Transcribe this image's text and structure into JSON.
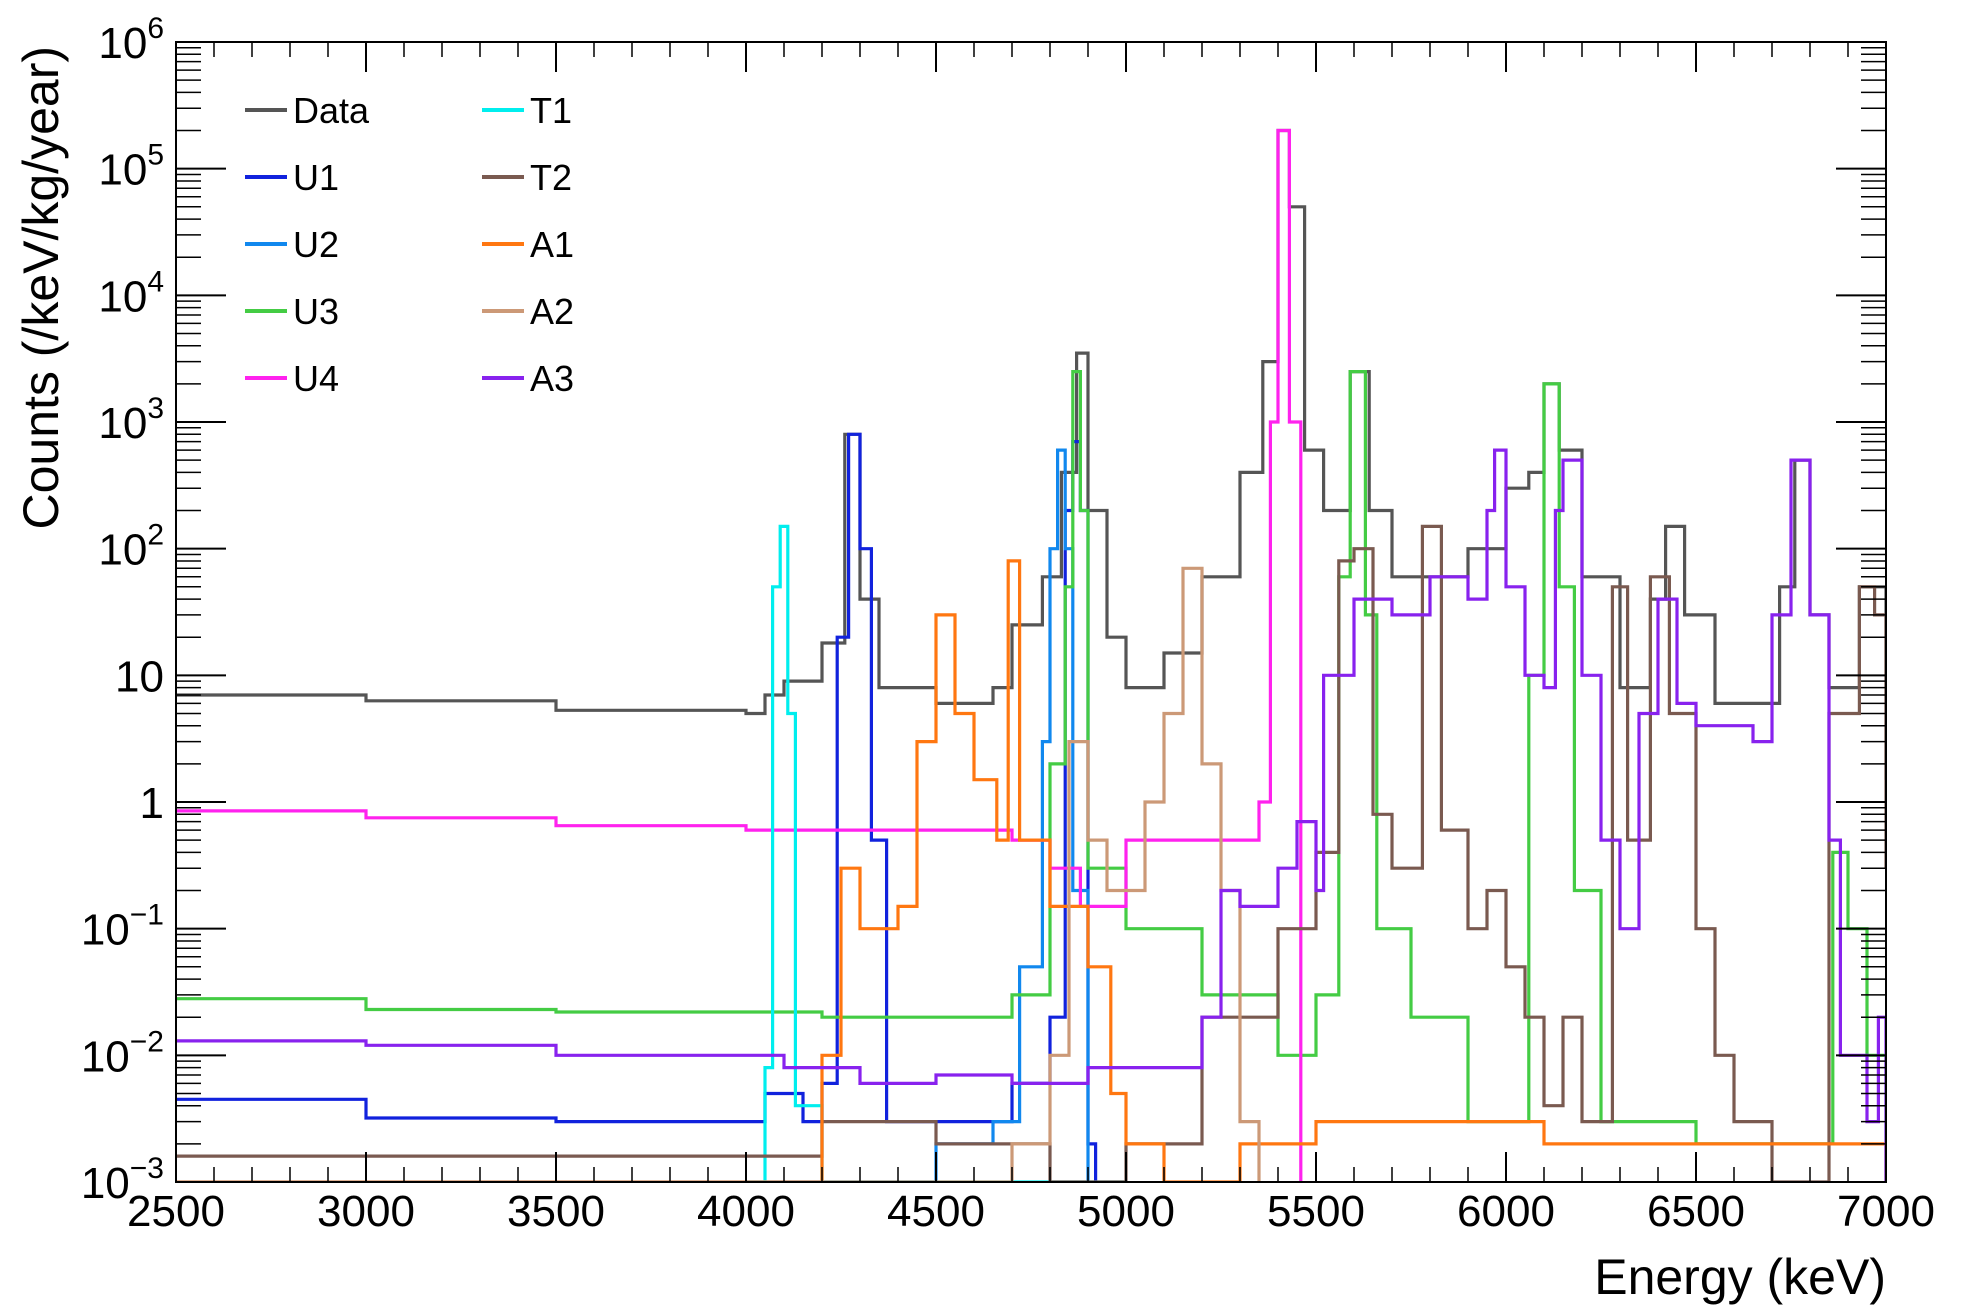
{
  "chart_data": {
    "type": "line",
    "xlabel": "Energy (keV)",
    "ylabel": "Counts (/keV/kg/year)",
    "xlim": [
      2500,
      7000
    ],
    "ylim": [
      0.001,
      1000000
    ],
    "yscale": "log",
    "grid": false,
    "legend_position": "top-left",
    "x_ticks": [
      2500,
      3000,
      3500,
      4000,
      4500,
      5000,
      5500,
      6000,
      6500,
      7000
    ],
    "x_tick_labels": [
      "2500",
      "3000",
      "3500",
      "4000",
      "4500",
      "5000",
      "5500",
      "6000",
      "6500",
      "7000"
    ],
    "y_ticks": [
      {
        "value": 0.001,
        "base": "10",
        "exp": "−3"
      },
      {
        "value": 0.01,
        "base": "10",
        "exp": "−2"
      },
      {
        "value": 0.1,
        "base": "10",
        "exp": "−1"
      },
      {
        "value": 1,
        "base": "1",
        "exp": ""
      },
      {
        "value": 10,
        "base": "10",
        "exp": ""
      },
      {
        "value": 100,
        "base": "10",
        "exp": "2"
      },
      {
        "value": 1000,
        "base": "10",
        "exp": "3"
      },
      {
        "value": 10000,
        "base": "10",
        "exp": "4"
      },
      {
        "value": 100000,
        "base": "10",
        "exp": "5"
      },
      {
        "value": 1000000,
        "base": "10",
        "exp": "6"
      }
    ],
    "series": [
      {
        "name": "Data",
        "color": "#555555",
        "points": [
          [
            2500,
            7
          ],
          [
            3000,
            6.3
          ],
          [
            3500,
            5.3
          ],
          [
            4000,
            5
          ],
          [
            4050,
            7
          ],
          [
            4100,
            9
          ],
          [
            4200,
            18
          ],
          [
            4260,
            800
          ],
          [
            4300,
            40
          ],
          [
            4350,
            8
          ],
          [
            4500,
            6
          ],
          [
            4650,
            8
          ],
          [
            4700,
            25
          ],
          [
            4780,
            60
          ],
          [
            4830,
            400
          ],
          [
            4870,
            3500
          ],
          [
            4900,
            200
          ],
          [
            4950,
            20
          ],
          [
            5000,
            8
          ],
          [
            5100,
            15
          ],
          [
            5200,
            60
          ],
          [
            5300,
            400
          ],
          [
            5360,
            3000
          ],
          [
            5400,
            200000
          ],
          [
            5430,
            50000
          ],
          [
            5470,
            600
          ],
          [
            5520,
            200
          ],
          [
            5590,
            2500
          ],
          [
            5640,
            200
          ],
          [
            5700,
            60
          ],
          [
            5800,
            60
          ],
          [
            5900,
            100
          ],
          [
            6000,
            300
          ],
          [
            6060,
            400
          ],
          [
            6100,
            2000
          ],
          [
            6140,
            600
          ],
          [
            6200,
            60
          ],
          [
            6300,
            8
          ],
          [
            6380,
            40
          ],
          [
            6420,
            150
          ],
          [
            6470,
            30
          ],
          [
            6550,
            6
          ],
          [
            6650,
            6
          ],
          [
            6720,
            50
          ],
          [
            6760,
            500
          ],
          [
            6800,
            30
          ],
          [
            6850,
            8
          ],
          [
            6930,
            50
          ],
          [
            7000,
            1.5
          ]
        ]
      },
      {
        "name": "U1",
        "color": "#1122dd",
        "points": [
          [
            2500,
            0.0045
          ],
          [
            3000,
            0.0032
          ],
          [
            3500,
            0.003
          ],
          [
            4000,
            0.003
          ],
          [
            4050,
            0.005
          ],
          [
            4150,
            0.003
          ],
          [
            4200,
            0.006
          ],
          [
            4240,
            20
          ],
          [
            4270,
            800
          ],
          [
            4300,
            100
          ],
          [
            4330,
            0.5
          ],
          [
            4370,
            0.003
          ],
          [
            4500,
            0.003
          ],
          [
            4650,
            0.003
          ],
          [
            4700,
            0.006
          ],
          [
            4800,
            0.02
          ],
          [
            4840,
            200
          ],
          [
            4860,
            700
          ],
          [
            4880,
            200
          ],
          [
            4900,
            0.002
          ],
          [
            4920,
            0.001
          ]
        ]
      },
      {
        "name": "U2",
        "color": "#1188ee",
        "points": [
          [
            4000,
            0.001
          ],
          [
            4500,
            0.002
          ],
          [
            4650,
            0.003
          ],
          [
            4720,
            0.05
          ],
          [
            4780,
            3
          ],
          [
            4800,
            100
          ],
          [
            4820,
            600
          ],
          [
            4840,
            100
          ],
          [
            4860,
            0.2
          ],
          [
            4900,
            0.001
          ]
        ]
      },
      {
        "name": "U3",
        "color": "#44cc44",
        "points": [
          [
            2500,
            0.028
          ],
          [
            3000,
            0.023
          ],
          [
            3500,
            0.022
          ],
          [
            4000,
            0.022
          ],
          [
            4200,
            0.02
          ],
          [
            4500,
            0.02
          ],
          [
            4700,
            0.03
          ],
          [
            4800,
            2
          ],
          [
            4840,
            50
          ],
          [
            4860,
            2500
          ],
          [
            4880,
            200
          ],
          [
            4900,
            0.3
          ],
          [
            5000,
            0.1
          ],
          [
            5200,
            0.03
          ],
          [
            5400,
            0.01
          ],
          [
            5500,
            0.03
          ],
          [
            5560,
            60
          ],
          [
            5590,
            2500
          ],
          [
            5630,
            30
          ],
          [
            5660,
            0.1
          ],
          [
            5750,
            0.02
          ],
          [
            5900,
            0.003
          ],
          [
            6000,
            0.003
          ],
          [
            6060,
            10
          ],
          [
            6100,
            2000
          ],
          [
            6140,
            50
          ],
          [
            6180,
            0.2
          ],
          [
            6250,
            0.003
          ],
          [
            6500,
            0.002
          ],
          [
            6800,
            0.002
          ],
          [
            6860,
            0.4
          ],
          [
            6900,
            0.1
          ],
          [
            6950,
            0.01
          ],
          [
            7000,
            0.001
          ]
        ]
      },
      {
        "name": "U4",
        "color": "#ff22ee",
        "points": [
          [
            2500,
            0.85
          ],
          [
            3000,
            0.75
          ],
          [
            3500,
            0.65
          ],
          [
            4000,
            0.6
          ],
          [
            4200,
            0.6
          ],
          [
            4500,
            0.6
          ],
          [
            4700,
            0.5
          ],
          [
            4800,
            0.3
          ],
          [
            4880,
            0.15
          ],
          [
            5000,
            0.5
          ],
          [
            5200,
            0.5
          ],
          [
            5350,
            1
          ],
          [
            5380,
            1000
          ],
          [
            5400,
            200000
          ],
          [
            5430,
            1000
          ],
          [
            5460,
            0.001
          ]
        ]
      },
      {
        "name": "T1",
        "color": "#00eeee",
        "points": [
          [
            4000,
            0.001
          ],
          [
            4050,
            0.008
          ],
          [
            4070,
            50
          ],
          [
            4090,
            150
          ],
          [
            4110,
            5
          ],
          [
            4130,
            0.004
          ],
          [
            4200,
            0.001
          ],
          [
            5000,
            0.001
          ]
        ]
      },
      {
        "name": "T2",
        "color": "#7a5a50",
        "points": [
          [
            2500,
            0.0016
          ],
          [
            3000,
            0.0016
          ],
          [
            3500,
            0.0016
          ],
          [
            4000,
            0.0016
          ],
          [
            4200,
            0.003
          ],
          [
            4500,
            0.002
          ],
          [
            4800,
            0.001
          ],
          [
            5000,
            0.002
          ],
          [
            5200,
            0.02
          ],
          [
            5400,
            0.1
          ],
          [
            5500,
            0.4
          ],
          [
            5560,
            80
          ],
          [
            5600,
            100
          ],
          [
            5650,
            0.8
          ],
          [
            5700,
            0.3
          ],
          [
            5780,
            150
          ],
          [
            5830,
            0.6
          ],
          [
            5900,
            0.1
          ],
          [
            5950,
            0.2
          ],
          [
            6000,
            0.05
          ],
          [
            6050,
            0.02
          ],
          [
            6100,
            0.004
          ],
          [
            6150,
            0.02
          ],
          [
            6200,
            0.003
          ],
          [
            6280,
            50
          ],
          [
            6320,
            0.5
          ],
          [
            6380,
            60
          ],
          [
            6430,
            5
          ],
          [
            6500,
            0.1
          ],
          [
            6550,
            0.01
          ],
          [
            6600,
            0.003
          ],
          [
            6700,
            0.001
          ],
          [
            6850,
            5
          ],
          [
            6930,
            50
          ],
          [
            6970,
            30
          ],
          [
            7000,
            0.3
          ]
        ]
      },
      {
        "name": "A1",
        "color": "#ff7711",
        "points": [
          [
            2500,
            0.001
          ],
          [
            4000,
            0.001
          ],
          [
            4200,
            0.01
          ],
          [
            4250,
            0.3
          ],
          [
            4300,
            0.1
          ],
          [
            4400,
            0.15
          ],
          [
            4450,
            3
          ],
          [
            4500,
            30
          ],
          [
            4550,
            5
          ],
          [
            4600,
            1.5
          ],
          [
            4660,
            0.5
          ],
          [
            4690,
            80
          ],
          [
            4720,
            0.5
          ],
          [
            4800,
            0.15
          ],
          [
            4900,
            0.05
          ],
          [
            4960,
            0.005
          ],
          [
            5000,
            0.002
          ],
          [
            5100,
            0.001
          ],
          [
            5300,
            0.002
          ],
          [
            5500,
            0.003
          ],
          [
            5800,
            0.003
          ],
          [
            6100,
            0.002
          ],
          [
            6400,
            0.002
          ],
          [
            6700,
            0.002
          ],
          [
            7000,
            0.001
          ]
        ]
      },
      {
        "name": "A2",
        "color": "#cc9977",
        "points": [
          [
            2500,
            0.001
          ],
          [
            4000,
            0.001
          ],
          [
            4500,
            0.001
          ],
          [
            4700,
            0.002
          ],
          [
            4800,
            0.01
          ],
          [
            4850,
            3
          ],
          [
            4900,
            0.5
          ],
          [
            4950,
            0.2
          ],
          [
            5050,
            1
          ],
          [
            5100,
            5
          ],
          [
            5150,
            70
          ],
          [
            5200,
            2
          ],
          [
            5250,
            0.2
          ],
          [
            5300,
            0.003
          ],
          [
            5350,
            0.001
          ]
        ]
      },
      {
        "name": "A3",
        "color": "#8822ee",
        "points": [
          [
            2500,
            0.013
          ],
          [
            3000,
            0.012
          ],
          [
            3500,
            0.01
          ],
          [
            4000,
            0.01
          ],
          [
            4100,
            0.008
          ],
          [
            4300,
            0.006
          ],
          [
            4500,
            0.007
          ],
          [
            4700,
            0.006
          ],
          [
            4900,
            0.008
          ],
          [
            5000,
            0.008
          ],
          [
            5200,
            0.02
          ],
          [
            5250,
            0.2
          ],
          [
            5300,
            0.15
          ],
          [
            5400,
            0.3
          ],
          [
            5450,
            0.7
          ],
          [
            5500,
            0.2
          ],
          [
            5520,
            10
          ],
          [
            5560,
            10
          ],
          [
            5600,
            40
          ],
          [
            5700,
            30
          ],
          [
            5800,
            60
          ],
          [
            5900,
            40
          ],
          [
            5950,
            200
          ],
          [
            5970,
            600
          ],
          [
            6000,
            50
          ],
          [
            6050,
            10
          ],
          [
            6100,
            8
          ],
          [
            6130,
            200
          ],
          [
            6150,
            500
          ],
          [
            6200,
            10
          ],
          [
            6250,
            0.5
          ],
          [
            6300,
            0.1
          ],
          [
            6350,
            5
          ],
          [
            6400,
            40
          ],
          [
            6450,
            6
          ],
          [
            6500,
            4
          ],
          [
            6600,
            4
          ],
          [
            6650,
            3
          ],
          [
            6700,
            30
          ],
          [
            6750,
            500
          ],
          [
            6800,
            30
          ],
          [
            6850,
            0.5
          ],
          [
            6880,
            0.01
          ],
          [
            6950,
            0.003
          ],
          [
            6980,
            0.02
          ],
          [
            7000,
            0.001
          ]
        ]
      }
    ]
  }
}
